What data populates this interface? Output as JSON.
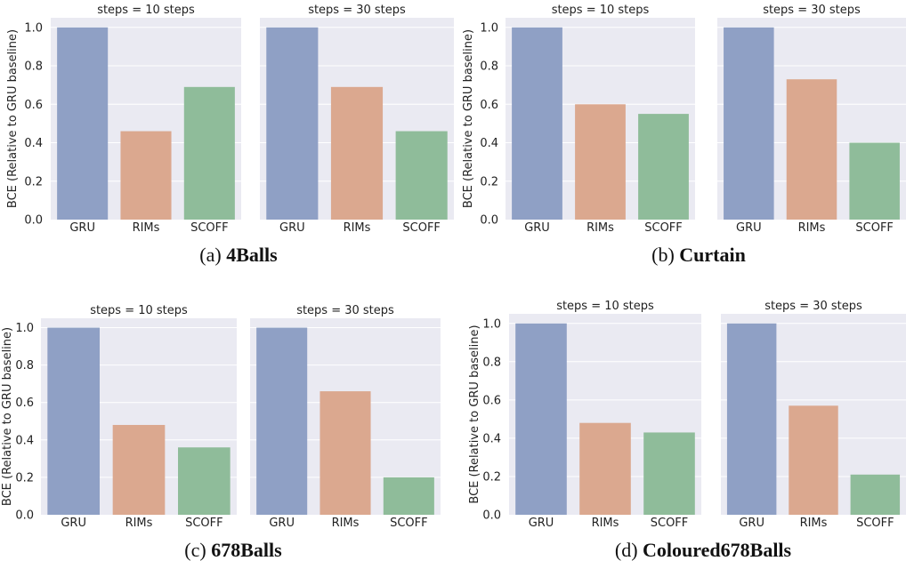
{
  "chart_data": [
    {
      "type": "bar",
      "caption_prefix": "(a)",
      "caption_bold": "4Balls",
      "ylabel": "BCE (Relative to GRU baseline)",
      "ylim": [
        0,
        1.05
      ],
      "yticks": [
        "0.0",
        "0.2",
        "0.4",
        "0.6",
        "0.8",
        "1.0"
      ],
      "categories": [
        "GRU",
        "RIMs",
        "SCOFF"
      ],
      "facets": [
        {
          "title": "steps = 10 steps",
          "values": [
            1.0,
            0.46,
            0.69
          ]
        },
        {
          "title": "steps = 30 steps",
          "values": [
            1.0,
            0.69,
            0.46
          ]
        }
      ]
    },
    {
      "type": "bar",
      "caption_prefix": "(b)",
      "caption_bold": "Curtain",
      "ylabel": "BCE (Relative to GRU baseline)",
      "ylim": [
        0,
        1.05
      ],
      "yticks": [
        "0.0",
        "0.2",
        "0.4",
        "0.6",
        "0.8",
        "1.0"
      ],
      "categories": [
        "GRU",
        "RIMs",
        "SCOFF"
      ],
      "facets": [
        {
          "title": "steps = 10 steps",
          "values": [
            1.0,
            0.6,
            0.55
          ]
        },
        {
          "title": "steps = 30 steps",
          "values": [
            1.0,
            0.73,
            0.4
          ]
        }
      ]
    },
    {
      "type": "bar",
      "caption_prefix": "(c)",
      "caption_bold": "678Balls",
      "ylabel": "BCE (Relative to GRU baseline)",
      "ylim": [
        0,
        1.05
      ],
      "yticks": [
        "0.0",
        "0.2",
        "0.4",
        "0.6",
        "0.8",
        "1.0"
      ],
      "categories": [
        "GRU",
        "RIMs",
        "SCOFF"
      ],
      "facets": [
        {
          "title": "steps = 10 steps",
          "values": [
            1.0,
            0.48,
            0.36
          ]
        },
        {
          "title": "steps = 30 steps",
          "values": [
            1.0,
            0.66,
            0.2
          ]
        }
      ]
    },
    {
      "type": "bar",
      "caption_prefix": "(d)",
      "caption_bold": "Coloured678Balls",
      "ylabel": "BCE (Relative to GRU baseline)",
      "ylim": [
        0,
        1.05
      ],
      "yticks": [
        "0.0",
        "0.2",
        "0.4",
        "0.6",
        "0.8",
        "1.0"
      ],
      "categories": [
        "GRU",
        "RIMs",
        "SCOFF"
      ],
      "facets": [
        {
          "title": "steps = 10 steps",
          "values": [
            1.0,
            0.48,
            0.43
          ]
        },
        {
          "title": "steps = 30 steps",
          "values": [
            1.0,
            0.57,
            0.21
          ]
        }
      ]
    }
  ],
  "colors": {
    "plot_background": "#eaeaf2",
    "grid": "#ffffff",
    "bars": [
      "#8fa0c5",
      "#dba88f",
      "#8fbc9a"
    ],
    "text": "#222222"
  }
}
